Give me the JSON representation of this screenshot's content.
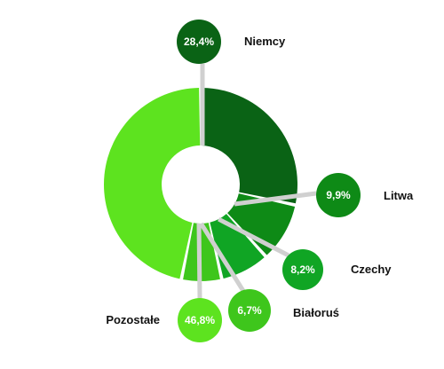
{
  "chart_data": {
    "type": "pie",
    "donut": true,
    "legend": "none",
    "categories": [
      "Niemcy",
      "Litwa",
      "Czechy",
      "Białoruś",
      "Pozostałe"
    ],
    "values": [
      28.4,
      9.9,
      8.2,
      6.7,
      46.8
    ],
    "value_labels": [
      "28,4%",
      "9,9%",
      "8,2%",
      "6,7%",
      "46,8%"
    ],
    "colors": [
      "#0a6315",
      "#0e8a16",
      "#10a524",
      "#3ec61c",
      "#5de31f"
    ],
    "bubble_colors": [
      "#0a6315",
      "#0e8a16",
      "#10a524",
      "#3ec61c",
      "#5de31f"
    ]
  }
}
